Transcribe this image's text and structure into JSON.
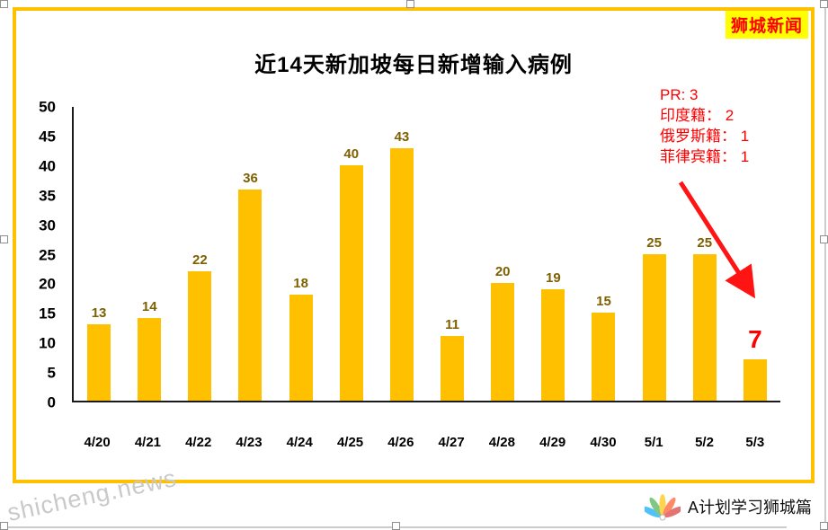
{
  "header": {
    "brand": "狮城新闻"
  },
  "chart_data": {
    "type": "bar",
    "title": "近14天新加坡每日新增输入病例",
    "categories": [
      "4/20",
      "4/21",
      "4/22",
      "4/23",
      "4/24",
      "4/25",
      "4/26",
      "4/27",
      "4/28",
      "4/29",
      "4/30",
      "5/1",
      "5/2",
      "5/3"
    ],
    "values": [
      13,
      14,
      22,
      36,
      18,
      40,
      43,
      11,
      20,
      19,
      15,
      25,
      25,
      7
    ],
    "xlabel": "",
    "ylabel": "",
    "ylim": [
      0,
      50
    ],
    "yticks": [
      0,
      5,
      10,
      15,
      20,
      25,
      30,
      35,
      40,
      45,
      50
    ],
    "grid": false,
    "legend": "none",
    "bar_color": "#FFC000",
    "highlight_index": 13,
    "highlight_color": "#FF0000"
  },
  "annotation": {
    "lines": [
      "PR: 3",
      "印度籍： 2",
      "俄罗斯籍： 1",
      "菲律宾籍： 1"
    ],
    "color": "#FF0000"
  },
  "footer": {
    "watermark": "shicheng.news",
    "channel": "A计划学习狮城篇"
  }
}
